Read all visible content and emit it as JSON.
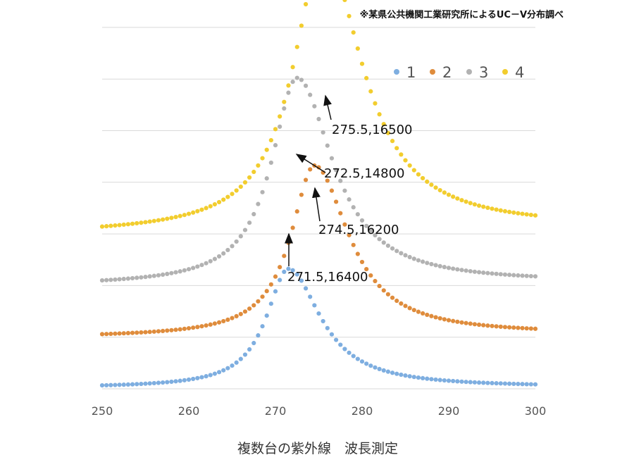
{
  "chart_data": {
    "type": "scatter",
    "title": "",
    "note": "※某県公共機関工業研究所によるUC－V分布調べ",
    "xlabel": "複数台の紫外線　波長測定",
    "ylabel": "",
    "xlim": [
      250,
      300
    ],
    "x_ticks": [
      "250",
      "260",
      "270",
      "280",
      "290",
      "300"
    ],
    "grid": "horizontal",
    "legend_position": "top-right",
    "series": [
      {
        "name": "1",
        "color": "#7eaee0",
        "x_start": 250,
        "x_end": 300,
        "x_step": 0.5,
        "peak_x": 271.5,
        "baseline_start": 0.02,
        "baseline_end": 0.03,
        "peak": 2.3,
        "width_left": 3.1,
        "width_right": 4.5
      },
      {
        "name": "2",
        "color": "#df8c3c",
        "x_start": 250,
        "x_end": 300,
        "x_step": 0.5,
        "peak_x": 274.5,
        "baseline_start": 1.0,
        "baseline_end": 1.05,
        "peak": 3.3,
        "width_left": 3.3,
        "width_right": 4.8
      },
      {
        "name": "3",
        "color": "#b2b2b2",
        "x_start": 250,
        "x_end": 300,
        "x_step": 0.5,
        "peak_x": 272.5,
        "baseline_start": 2.0,
        "baseline_end": 2.05,
        "peak": 4.0,
        "width_left": 3.6,
        "width_right": 5.0
      },
      {
        "name": "4",
        "color": "#f2cd2e",
        "x_start": 250,
        "x_end": 300,
        "x_step": 0.5,
        "peak_x": 275.5,
        "baseline_start": 3.0,
        "baseline_end": 3.1,
        "peak": 5.4,
        "width_left": 4.2,
        "width_right": 5.5
      }
    ],
    "annotations": [
      {
        "text": "275.5,16500",
        "x": 275.5
      },
      {
        "text": "272.5,14800",
        "x": 272.5
      },
      {
        "text": "274.5,16200",
        "x": 274.5
      },
      {
        "text": "271.5,16400",
        "x": 271.5
      }
    ]
  }
}
